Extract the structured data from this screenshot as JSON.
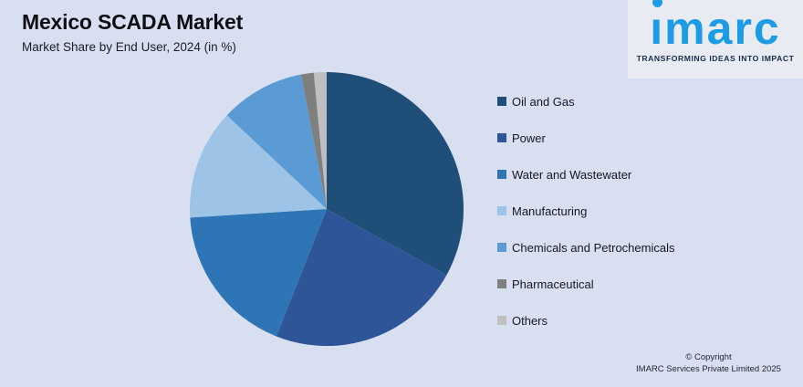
{
  "page": {
    "background_color": "#d8dff0"
  },
  "header": {
    "title": "Mexico SCADA Market",
    "subtitle": "Market Share by End User, 2024 (in %)"
  },
  "logo": {
    "brand": "imarc",
    "tagline": "TRANSFORMING IDEAS INTO IMPACT",
    "brand_color": "#1b9ce4",
    "tagline_color": "#17294d",
    "panel_color": "#e8ebf2"
  },
  "chart_data": {
    "type": "pie",
    "title": "Mexico SCADA Market",
    "subtitle": "Market Share by End User, 2024 (in %)",
    "unit": "%",
    "start_angle_deg": 0,
    "direction": "clockwise",
    "legend_position": "right",
    "data_labels_shown": false,
    "categories": [
      "Oil and Gas",
      "Power",
      "Water and Wastewater",
      "Manufacturing",
      "Chemicals and Petrochemicals",
      "Pharmaceutical",
      "Others"
    ],
    "values": [
      33,
      23,
      18,
      13,
      10,
      1.5,
      1.5
    ],
    "colors": [
      "#1f4e79",
      "#2e5597",
      "#2e75b6",
      "#9dc3e6",
      "#5b9bd5",
      "#7f7f7f",
      "#bfbfbf"
    ]
  },
  "footer": {
    "copyright_line1": "© Copyright",
    "copyright_line2": "IMARC Services Private Limited 2025"
  }
}
